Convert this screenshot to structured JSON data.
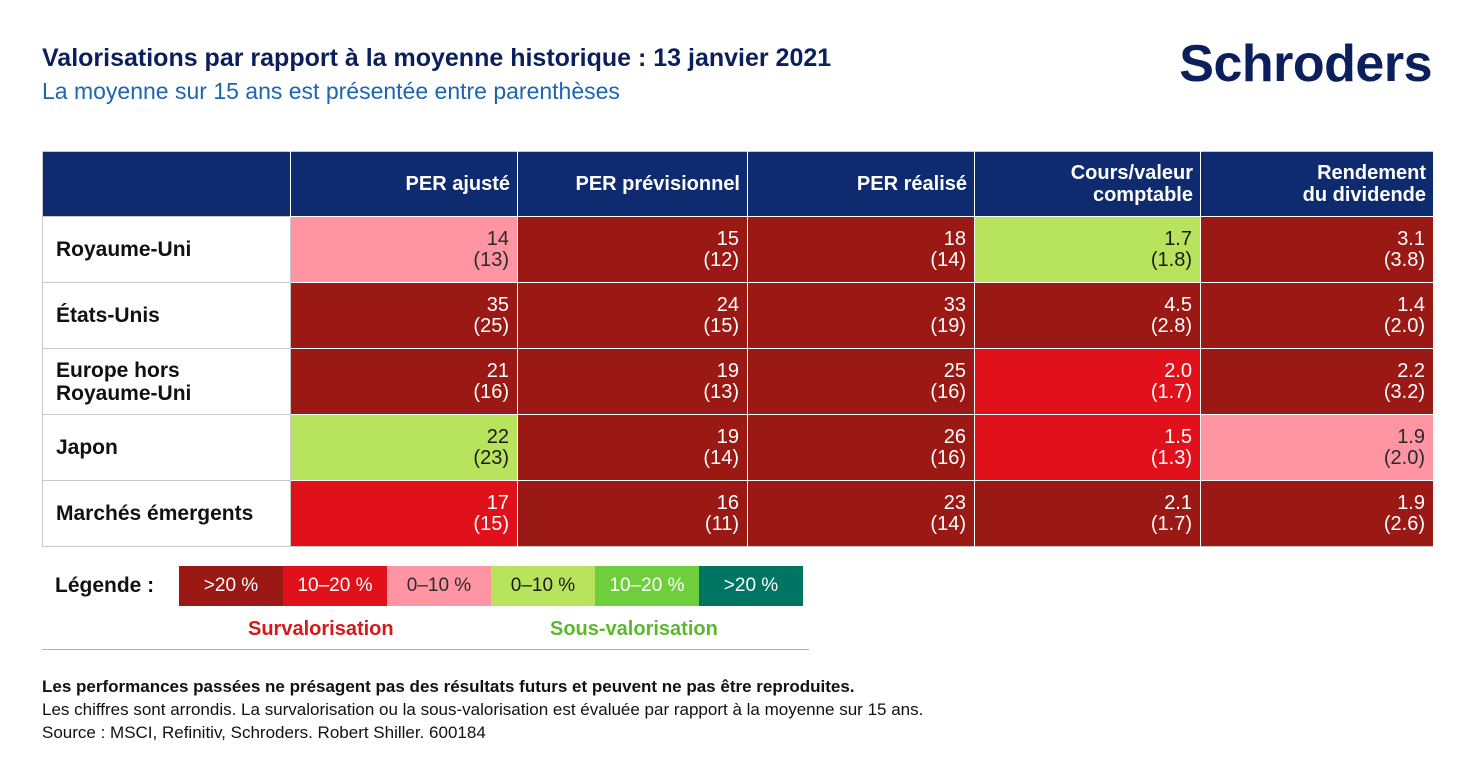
{
  "header": {
    "title": "Valorisations par rapport à la moyenne historique : 13 janvier 2021",
    "subtitle": "La moyenne sur 15 ans est présentée entre parenthèses",
    "logo": "Schroders"
  },
  "colors": {
    "navy": "#0f2b6f",
    "over_gt20": "#9b1914",
    "over_10_20": "#e0111b",
    "over_0_10": "#ff95a3",
    "under_0_10": "#b8e35c",
    "under_10_20": "#6fce3c",
    "under_gt20": "#007564"
  },
  "chart_data": {
    "type": "table",
    "title": "Valorisations par rapport à la moyenne historique : 13 janvier 2021",
    "subtitle": "La moyenne sur 15 ans est présentée entre parenthèses",
    "columns": [
      "PER ajusté",
      "PER prévisionnel",
      "PER réalisé",
      "Cours/valeur comptable",
      "Rendement du dividende"
    ],
    "rows": [
      {
        "region": "Royaume-Uni",
        "cells": [
          {
            "current": "14",
            "average": "(13)",
            "level": "lvl-lr"
          },
          {
            "current": "15",
            "average": "(12)",
            "level": "lvl-dr"
          },
          {
            "current": "18",
            "average": "(14)",
            "level": "lvl-dr"
          },
          {
            "current": "1.7",
            "average": "(1.8)",
            "level": "lvl-lg"
          },
          {
            "current": "3.1",
            "average": "(3.8)",
            "level": "lvl-dr"
          }
        ]
      },
      {
        "region": "États-Unis",
        "cells": [
          {
            "current": "35",
            "average": "(25)",
            "level": "lvl-dr"
          },
          {
            "current": "24",
            "average": "(15)",
            "level": "lvl-dr"
          },
          {
            "current": "33",
            "average": "(19)",
            "level": "lvl-dr"
          },
          {
            "current": "4.5",
            "average": "(2.8)",
            "level": "lvl-dr"
          },
          {
            "current": "1.4",
            "average": "(2.0)",
            "level": "lvl-dr"
          }
        ]
      },
      {
        "region": "Europe hors Royaume-Uni",
        "region_lines": [
          "Europe hors",
          "Royaume-Uni"
        ],
        "cells": [
          {
            "current": "21",
            "average": "(16)",
            "level": "lvl-dr"
          },
          {
            "current": "19",
            "average": "(13)",
            "level": "lvl-dr"
          },
          {
            "current": "25",
            "average": "(16)",
            "level": "lvl-dr"
          },
          {
            "current": "2.0",
            "average": "(1.7)",
            "level": "lvl-r"
          },
          {
            "current": "2.2",
            "average": "(3.2)",
            "level": "lvl-dr"
          }
        ]
      },
      {
        "region": "Japon",
        "cells": [
          {
            "current": "22",
            "average": "(23)",
            "level": "lvl-lg"
          },
          {
            "current": "19",
            "average": "(14)",
            "level": "lvl-dr"
          },
          {
            "current": "26",
            "average": "(16)",
            "level": "lvl-dr"
          },
          {
            "current": "1.5",
            "average": "(1.3)",
            "level": "lvl-r"
          },
          {
            "current": "1.9",
            "average": "(2.0)",
            "level": "lvl-lr"
          }
        ]
      },
      {
        "region": "Marchés émergents",
        "cells": [
          {
            "current": "17",
            "average": "(15)",
            "level": "lvl-r"
          },
          {
            "current": "16",
            "average": "(11)",
            "level": "lvl-dr"
          },
          {
            "current": "23",
            "average": "(14)",
            "level": "lvl-dr"
          },
          {
            "current": "2.1",
            "average": "(1.7)",
            "level": "lvl-dr"
          },
          {
            "current": "1.9",
            "average": "(2.6)",
            "level": "lvl-dr"
          }
        ]
      }
    ],
    "legend": {
      "title": "Légende :",
      "items": [
        {
          "label": ">20 %",
          "color": "#9b1914",
          "text_color": "#ffffff"
        },
        {
          "label": "10–20 %",
          "color": "#e0111b",
          "text_color": "#ffffff"
        },
        {
          "label": "0–10 %",
          "color": "#ff95a3",
          "text_color": "#2a2a2a"
        },
        {
          "label": "0–10 %",
          "color": "#b8e35c",
          "text_color": "#1a1a1a"
        },
        {
          "label": "10–20 %",
          "color": "#6fce3c",
          "text_color": "#ffffff"
        },
        {
          "label": ">20 %",
          "color": "#007564",
          "text_color": "#ffffff"
        }
      ],
      "overvalued_label": "Survalorisation",
      "undervalued_label": "Sous-valorisation"
    }
  },
  "footer": {
    "disclaimer": "Les performances passées ne présagent pas des résultats futurs et peuvent ne pas être reproduites.",
    "note": "Les chiffres sont arrondis. La survalorisation ou la sous-valorisation est évaluée par rapport à la moyenne sur 15 ans.",
    "source": "Source : MSCI, Refinitiv, Schroders. Robert Shiller. 600184"
  }
}
